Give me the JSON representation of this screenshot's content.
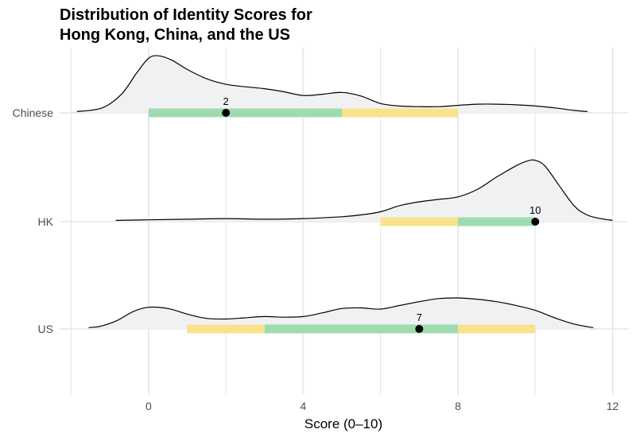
{
  "chart_data": {
    "type": "ridgeline",
    "title": [
      "Distribution of Identity Scores for",
      "Hong Kong, China, and the US"
    ],
    "xlabel": "Score (0–10)",
    "ylabel": "",
    "xlim": [
      -2.3,
      12.4
    ],
    "x_ticks": [
      0,
      4,
      8,
      12
    ],
    "x_tick_labels": [
      "0",
      "4",
      "8",
      "12"
    ],
    "grid": true,
    "categories": [
      "Chinese",
      "HK",
      "US"
    ],
    "series": [
      {
        "name": "Chinese",
        "median": 2,
        "median_label": "2",
        "inner_interval": [
          0,
          5
        ],
        "outer_interval": [
          5,
          8
        ],
        "density": [
          [
            -1.85,
            0.02
          ],
          [
            -1.2,
            0.08
          ],
          [
            -0.7,
            0.3
          ],
          [
            -0.3,
            0.65
          ],
          [
            0,
            0.88
          ],
          [
            0.25,
            0.92
          ],
          [
            0.6,
            0.85
          ],
          [
            1,
            0.7
          ],
          [
            1.5,
            0.55
          ],
          [
            2,
            0.46
          ],
          [
            2.5,
            0.42
          ],
          [
            3,
            0.39
          ],
          [
            3.5,
            0.34
          ],
          [
            4,
            0.28
          ],
          [
            4.5,
            0.3
          ],
          [
            5,
            0.33
          ],
          [
            5.5,
            0.27
          ],
          [
            6,
            0.15
          ],
          [
            6.5,
            0.11
          ],
          [
            7,
            0.1
          ],
          [
            7.5,
            0.1
          ],
          [
            8,
            0.12
          ],
          [
            8.5,
            0.14
          ],
          [
            9,
            0.14
          ],
          [
            9.5,
            0.13
          ],
          [
            10,
            0.11
          ],
          [
            10.5,
            0.08
          ],
          [
            11,
            0.04
          ],
          [
            11.35,
            0.02
          ]
        ]
      },
      {
        "name": "HK",
        "median": 10,
        "median_label": "10",
        "inner_interval": [
          8,
          10
        ],
        "outer_interval": [
          6,
          8
        ],
        "density": [
          [
            -0.85,
            0.02
          ],
          [
            0,
            0.03
          ],
          [
            1,
            0.04
          ],
          [
            2,
            0.05
          ],
          [
            3,
            0.04
          ],
          [
            4,
            0.05
          ],
          [
            5,
            0.08
          ],
          [
            5.5,
            0.11
          ],
          [
            6,
            0.16
          ],
          [
            6.5,
            0.26
          ],
          [
            7,
            0.32
          ],
          [
            7.5,
            0.36
          ],
          [
            8,
            0.4
          ],
          [
            8.5,
            0.52
          ],
          [
            9,
            0.72
          ],
          [
            9.5,
            0.9
          ],
          [
            9.8,
            0.98
          ],
          [
            10,
            0.99
          ],
          [
            10.25,
            0.9
          ],
          [
            10.6,
            0.6
          ],
          [
            11,
            0.26
          ],
          [
            11.3,
            0.12
          ],
          [
            11.6,
            0.06
          ],
          [
            12,
            0.02
          ]
        ]
      },
      {
        "name": "US",
        "median": 7,
        "median_label": "7",
        "inner_interval": [
          3,
          8
        ],
        "outer_interval_left": [
          1,
          3
        ],
        "outer_interval_right": [
          8,
          10
        ],
        "density": [
          [
            -1.55,
            0.02
          ],
          [
            -1.2,
            0.05
          ],
          [
            -0.8,
            0.14
          ],
          [
            -0.4,
            0.28
          ],
          [
            0,
            0.35
          ],
          [
            0.5,
            0.33
          ],
          [
            1,
            0.24
          ],
          [
            1.5,
            0.17
          ],
          [
            2,
            0.16
          ],
          [
            2.5,
            0.18
          ],
          [
            3,
            0.2
          ],
          [
            3.5,
            0.19
          ],
          [
            4,
            0.2
          ],
          [
            4.5,
            0.26
          ],
          [
            5,
            0.33
          ],
          [
            5.5,
            0.34
          ],
          [
            6,
            0.32
          ],
          [
            6.5,
            0.38
          ],
          [
            7,
            0.44
          ],
          [
            7.5,
            0.49
          ],
          [
            8,
            0.5
          ],
          [
            8.5,
            0.48
          ],
          [
            9,
            0.44
          ],
          [
            9.5,
            0.38
          ],
          [
            10,
            0.3
          ],
          [
            10.5,
            0.18
          ],
          [
            11,
            0.08
          ],
          [
            11.5,
            0.02
          ]
        ]
      }
    ],
    "colors": {
      "density_fill": "#f0f1f3",
      "density_line": "#000000",
      "inner_interval": "#9fdbb0",
      "outer_interval": "#f8e28c",
      "median_point": "#000000",
      "grid": "#e5e5e5"
    }
  }
}
